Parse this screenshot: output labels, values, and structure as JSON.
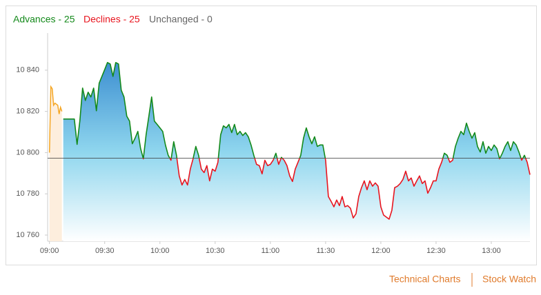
{
  "header": {
    "advances": "Advances - 25",
    "declines": "Declines - 25",
    "unchanged": "Unchanged - 0"
  },
  "links": [
    "Technical Charts",
    "Stock Watch"
  ],
  "chart_data": {
    "type": "line",
    "xlim": [
      539,
      801
    ],
    "ylim": [
      10757,
      10858
    ],
    "xticks": [
      {
        "value": 540,
        "label": "09:00"
      },
      {
        "value": 570,
        "label": "09:30"
      },
      {
        "value": 600,
        "label": "10:00"
      },
      {
        "value": 630,
        "label": "10:30"
      },
      {
        "value": 660,
        "label": "11:00"
      },
      {
        "value": 690,
        "label": "11:30"
      },
      {
        "value": 720,
        "label": "12:00"
      },
      {
        "value": 750,
        "label": "12:30"
      },
      {
        "value": 780,
        "label": "13:00"
      }
    ],
    "yticks": [
      {
        "value": 10760,
        "label": "10 760"
      },
      {
        "value": 10780,
        "label": "10 780"
      },
      {
        "value": 10800,
        "label": "10 800"
      },
      {
        "value": 10820,
        "label": "10 820"
      },
      {
        "value": 10840,
        "label": "10 840"
      }
    ],
    "baseline": 10797.3,
    "series": [
      {
        "color": "#f5a623",
        "fill": "#fdeedd",
        "x": [
          540,
          540.75,
          541.5,
          542.25,
          543,
          544.5,
          545.25,
          546,
          546.75
        ],
        "values": [
          10800,
          10832,
          10831,
          10823,
          10824,
          10823,
          10818.7,
          10822,
          10820
        ]
      },
      {
        "color_up": "#13891a",
        "color_down": "#e8141e",
        "fill": [
          "#3d8fd1",
          "#8fd6ee",
          "#ffffff"
        ],
        "x": [
          547.5,
          549,
          550.5,
          552,
          553.5,
          555,
          556.5,
          558,
          559.5,
          561,
          562.5,
          564,
          565.5,
          567,
          568.5,
          570,
          571.5,
          573,
          574.5,
          576,
          577.5,
          579,
          580.5,
          582,
          583.5,
          585,
          586.5,
          588,
          589.5,
          591,
          592.5,
          594,
          595.5,
          597,
          598.5,
          600,
          601.5,
          603,
          604.5,
          606,
          607.5,
          609,
          610.5,
          612,
          613.5,
          615,
          616.5,
          618,
          619.5,
          621,
          622.5,
          624,
          625.5,
          627,
          628.5,
          630,
          631.5,
          633,
          634.5,
          636,
          637.5,
          639,
          640.5,
          642,
          643.5,
          645,
          646.5,
          648,
          649.5,
          651,
          652.5,
          654,
          655.5,
          657,
          658.5,
          660,
          661.5,
          663,
          664.5,
          666,
          667.5,
          669,
          670.5,
          672,
          673.5,
          675,
          676.5,
          678,
          679.5,
          681,
          682.5,
          684,
          685.5,
          687,
          688.5,
          690,
          691.5,
          693,
          694.5,
          696,
          697.5,
          699,
          700.5,
          702,
          703.5,
          705,
          706.5,
          708,
          709.5,
          711,
          712.5,
          714,
          715.5,
          717,
          718.5,
          720,
          721.5,
          723,
          724.5,
          726,
          727.5,
          729,
          730.5,
          732,
          733.5,
          735,
          736.5,
          738,
          739.5,
          741,
          742.5,
          744,
          745.5,
          747,
          748.5,
          750,
          751.5,
          753,
          754.5,
          756,
          757.5,
          759,
          760.5,
          762,
          763.5,
          765,
          766.5,
          768,
          769.5,
          771,
          772.5,
          774,
          775.5,
          777,
          778.5,
          780,
          781.5,
          783,
          784.5,
          786,
          787.5,
          789,
          790.5,
          792,
          793.5,
          795,
          796.5,
          798,
          799.5,
          801
        ],
        "values": [
          10816.3,
          10816.3,
          10816.3,
          10816.3,
          10816.3,
          10804,
          10815.3,
          10831.3,
          10825.3,
          10829.3,
          10827,
          10831.3,
          10820.3,
          10833.7,
          10837,
          10840.3,
          10843.7,
          10843,
          10837,
          10843.7,
          10843,
          10830.3,
          10827,
          10817.7,
          10815.3,
          10804.3,
          10807,
          10810.3,
          10802,
          10797,
          10808.7,
          10817.7,
          10827,
          10815.3,
          10813.7,
          10812,
          10810.3,
          10803.7,
          10798.7,
          10796.3,
          10805.3,
          10798.7,
          10788.7,
          10784.3,
          10787,
          10784.3,
          10792,
          10797,
          10803,
          10798.7,
          10792,
          10790.3,
          10793.7,
          10786.3,
          10792,
          10791,
          10795.3,
          10808.7,
          10813,
          10812,
          10813.7,
          10809.7,
          10813.7,
          10808.7,
          10810.3,
          10808.3,
          10809.7,
          10807.7,
          10803.7,
          10798.7,
          10794.3,
          10793.7,
          10789.7,
          10796.3,
          10793.7,
          10794.3,
          10796.3,
          10799.7,
          10794.3,
          10797.7,
          10796.3,
          10793.7,
          10788.7,
          10786,
          10792,
          10795.3,
          10798.7,
          10807,
          10812,
          10807.7,
          10804.3,
          10807.7,
          10803,
          10803.7,
          10803.7,
          10796.3,
          10778.7,
          10776.3,
          10773.7,
          10777,
          10774.3,
          10778.7,
          10773.7,
          10774.3,
          10773,
          10768.3,
          10770.3,
          10778.7,
          10783,
          10786.3,
          10782,
          10786.3,
          10783.7,
          10785.3,
          10783.7,
          10773.7,
          10769.7,
          10768.7,
          10767.7,
          10772,
          10783,
          10783.7,
          10785,
          10787,
          10791,
          10786.3,
          10787.7,
          10783.7,
          10786.3,
          10788.7,
          10785,
          10786.3,
          10780.3,
          10783,
          10786.3,
          10786.3,
          10792,
          10795.3,
          10799.7,
          10798.7,
          10795.3,
          10796.3,
          10803,
          10807,
          10810.3,
          10808.7,
          10814.3,
          10810.3,
          10807,
          10809.7,
          10803,
          10800.3,
          10805.3,
          10799.7,
          10803,
          10801,
          10803.7,
          10802,
          10797,
          10799.7,
          10803,
          10805.3,
          10801,
          10805.3,
          10803.7,
          10800.3,
          10796.3,
          10798.7,
          10795.3,
          10789.3
        ]
      }
    ]
  }
}
